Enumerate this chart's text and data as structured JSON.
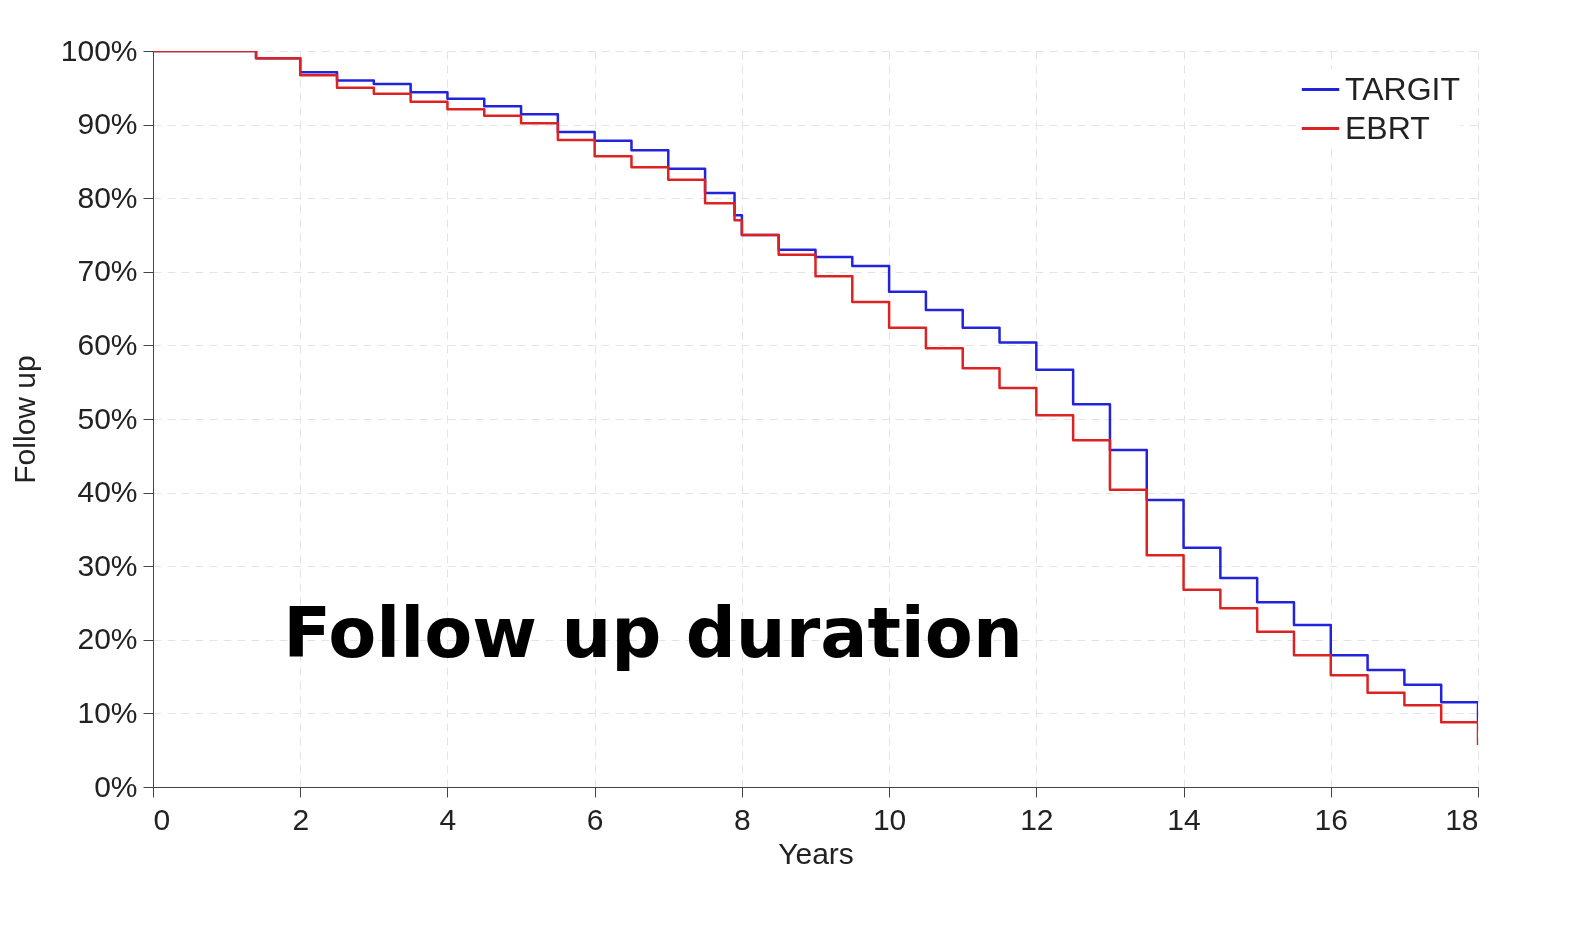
{
  "chart_data": {
    "type": "step",
    "xlabel": "Years",
    "ylabel": "Follow up",
    "annotations": [
      "Follow up duration"
    ],
    "x": [
      0,
      1.4,
      2,
      2.5,
      3,
      3.5,
      4,
      4.5,
      5,
      5.5,
      6,
      6.5,
      7,
      7.5,
      7.9,
      8,
      8.5,
      9,
      9.5,
      10,
      10.5,
      11,
      11.5,
      12,
      12.5,
      13,
      13.5,
      14,
      14.5,
      15,
      15.5,
      16,
      16.5,
      17,
      17.5,
      18
    ],
    "series": [
      {
        "name": "TARGIT",
        "color": "#2323dc",
        "values": [
          100,
          99,
          97.1,
          96,
          95.5,
          94.4,
          93.5,
          92.5,
          91.4,
          89,
          87.8,
          86.5,
          84,
          80.7,
          77.7,
          75,
          73,
          72,
          70.8,
          67.3,
          64.8,
          62.4,
          60.4,
          56.7,
          52,
          45.8,
          39,
          32.5,
          28.4,
          25.1,
          22,
          17.9,
          15.9,
          13.9,
          11.5,
          8.8
        ]
      },
      {
        "name": "EBRT",
        "color": "#dc2323",
        "values": [
          100,
          99,
          96.7,
          95,
          94.2,
          93.1,
          92.1,
          91.2,
          90.2,
          87.9,
          85.7,
          84.2,
          82.5,
          79.3,
          77,
          75,
          72.3,
          69.4,
          65.9,
          62.4,
          59.6,
          56.9,
          54.2,
          50.5,
          47.1,
          40.4,
          31.5,
          26.8,
          24.3,
          21.1,
          17.9,
          15.2,
          12.8,
          11.1,
          8.8,
          5.7
        ]
      }
    ],
    "xlim": [
      0,
      18
    ],
    "xticks": [
      0,
      2,
      4,
      6,
      8,
      10,
      12,
      14,
      16,
      18
    ],
    "ylim": [
      0,
      100
    ],
    "yticks": [
      {
        "value": 0,
        "label": "0%"
      },
      {
        "value": 10,
        "label": "10%"
      },
      {
        "value": 20,
        "label": "20%"
      },
      {
        "value": 30,
        "label": "30%"
      },
      {
        "value": 40,
        "label": "40%"
      },
      {
        "value": 50,
        "label": "50%"
      },
      {
        "value": 60,
        "label": "60%"
      },
      {
        "value": 70,
        "label": "70%"
      },
      {
        "value": 80,
        "label": "80%"
      },
      {
        "value": 90,
        "label": "90%"
      },
      {
        "value": 100,
        "label": "100%"
      }
    ],
    "grid": true,
    "legend": "top right",
    "line_style": "solid"
  }
}
